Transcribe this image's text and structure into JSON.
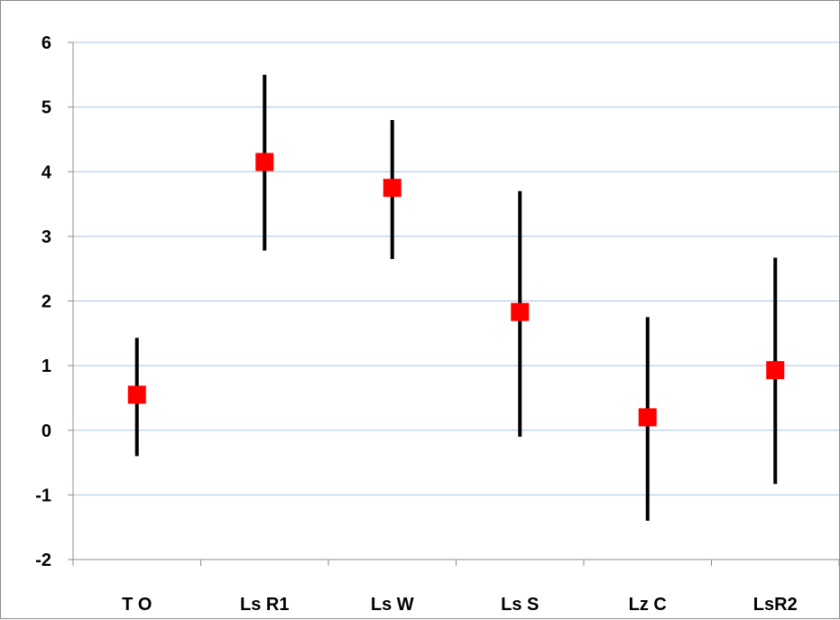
{
  "chart_data": {
    "type": "scatter",
    "subtype": "point-with-error-bars",
    "title": "",
    "xlabel": "",
    "ylabel": "",
    "categories": [
      "T O",
      "Ls R1",
      "Ls W",
      "Ls S",
      "Lz C",
      "LsR2"
    ],
    "series": [
      {
        "values": [
          0.55,
          4.15,
          3.75,
          1.83,
          0.2,
          0.93
        ],
        "lower": [
          -0.4,
          2.78,
          2.65,
          -0.1,
          -1.4,
          -0.83
        ],
        "upper": [
          1.43,
          5.5,
          4.8,
          3.7,
          1.75,
          2.67
        ],
        "marker": "square",
        "marker_color": "#ff0000",
        "errorbar_color": "#000000"
      }
    ],
    "ylim": [
      -2,
      6
    ],
    "yticks": [
      "-2",
      "-1",
      "0",
      "1",
      "2",
      "3",
      "4",
      "5",
      "6"
    ],
    "grid": true,
    "gridline_color": "#a9c4e0",
    "axis_color": "#8c8c8c",
    "legend": "none"
  }
}
